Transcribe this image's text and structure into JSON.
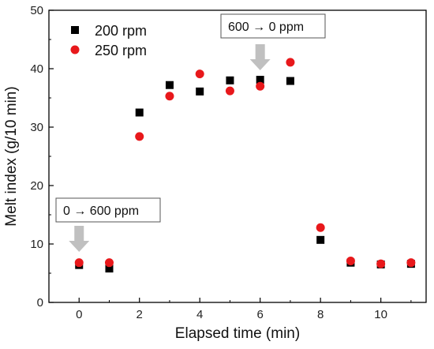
{
  "chart_data": {
    "type": "scatter",
    "xlabel": "Elapsed time (min)",
    "ylabel": "Melt index (g/10 min)",
    "xlim": [
      -1,
      11.5
    ],
    "ylim": [
      0,
      50
    ],
    "xticks": [
      0,
      2,
      4,
      6,
      8,
      10
    ],
    "yticks": [
      0,
      10,
      20,
      30,
      40,
      50
    ],
    "legend_position": "top-left",
    "series": [
      {
        "name": "200 rpm",
        "marker": "square",
        "color": "#000000",
        "x": [
          0,
          1,
          2,
          3,
          4,
          5,
          6,
          7,
          8,
          9,
          10,
          11
        ],
        "y": [
          6.4,
          5.8,
          32.5,
          37.2,
          36.1,
          38.0,
          38.1,
          37.9,
          10.7,
          6.8,
          6.5,
          6.6
        ]
      },
      {
        "name": "250 rpm",
        "marker": "circle",
        "color": "#e8181b",
        "x": [
          0,
          1,
          2,
          3,
          4,
          5,
          6,
          7,
          8,
          9,
          10,
          11
        ],
        "y": [
          6.8,
          6.8,
          28.4,
          35.3,
          39.1,
          36.2,
          37.0,
          41.1,
          12.8,
          7.1,
          6.6,
          6.8
        ]
      }
    ],
    "annotations": [
      {
        "text": "0 → 600 ppm",
        "arrow_x": 0,
        "arrow_color": "#c0c0c0"
      },
      {
        "text": "600 → 0 ppm",
        "arrow_x": 6,
        "arrow_color": "#c0c0c0"
      }
    ]
  }
}
